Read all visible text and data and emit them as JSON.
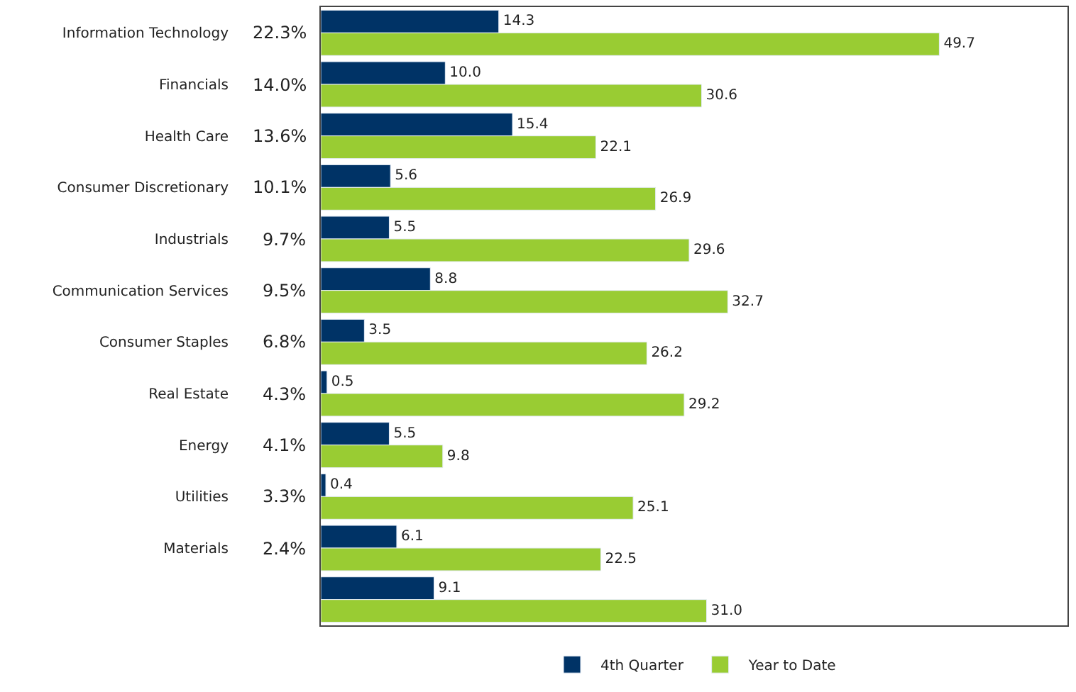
{
  "chart_data": {
    "type": "bar",
    "orientation": "horizontal",
    "categories": [
      "Information Technology",
      "Financials",
      "Health Care",
      "Consumer Discretionary",
      "Industrials",
      "Communication Services",
      "Consumer Staples",
      "Real Estate",
      "Energy",
      "Utilities",
      "Materials",
      null
    ],
    "series": [
      {
        "name": "4th Quarter",
        "color": "#003366",
        "values": [
          14.3,
          10.0,
          15.4,
          5.6,
          5.5,
          8.8,
          3.5,
          0.5,
          5.5,
          0.4,
          6.1,
          9.1
        ],
        "value_labels": [
          "14.3",
          "10.0",
          "15.4",
          "5.6",
          "5.5",
          "8.8",
          "3.5",
          "0.5",
          "5.5",
          "0.4",
          "6.1",
          "9.1"
        ]
      },
      {
        "name": "Year to Date",
        "color": "#99cc33",
        "values": [
          49.7,
          30.6,
          22.1,
          26.9,
          29.6,
          32.7,
          26.2,
          29.2,
          9.8,
          25.1,
          22.5,
          31.0
        ],
        "value_labels": [
          "49.7",
          "30.6",
          "22.1",
          "26.9",
          "29.6",
          "32.7",
          "26.2",
          "29.2",
          "9.8",
          "25.1",
          "22.5",
          "31.0"
        ]
      }
    ],
    "annotations": [
      "22.3%",
      "14.0%",
      "13.6%",
      "10.1%",
      "9.7%",
      "9.5%",
      "6.8%",
      "4.3%",
      "4.1%",
      "3.3%",
      "2.4%"
    ],
    "xlim": [
      0,
      60
    ],
    "tick_labels": "y",
    "legend": "bottom"
  }
}
